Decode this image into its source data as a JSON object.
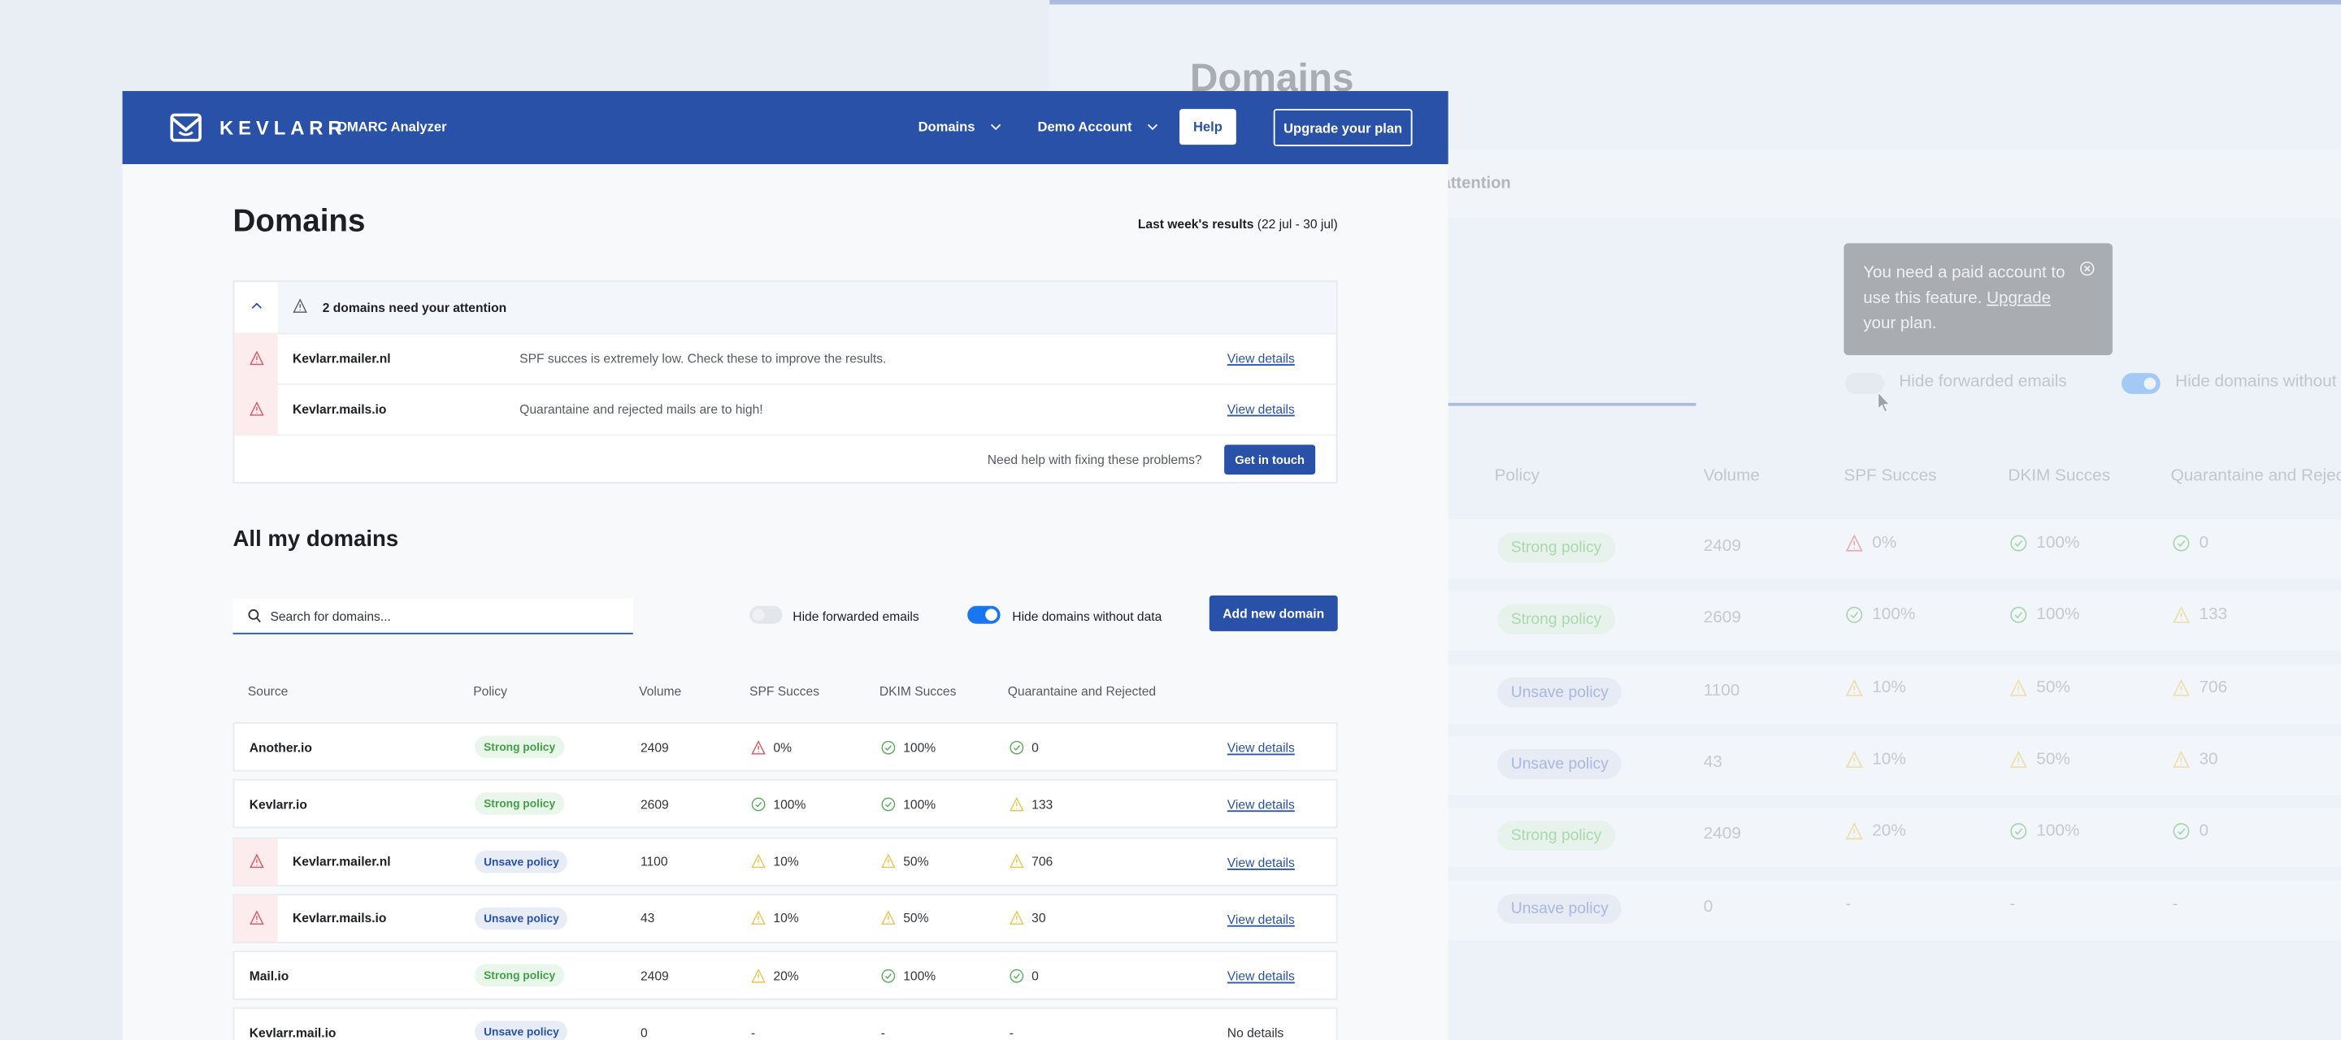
{
  "colors": {
    "brand": "#2851a7",
    "error": "#e0525e",
    "warning": "#e8c44a",
    "success": "#4caf50"
  },
  "header": {
    "logo_text": "KEVLARR",
    "product": "DMARC Analyzer",
    "nav": [
      {
        "label": "Domains",
        "icon": "chevron-down-icon"
      },
      {
        "label": "Demo Account",
        "icon": "chevron-down-icon"
      }
    ],
    "help_label": "Help",
    "upgrade_label": "Upgrade your plan"
  },
  "page": {
    "title": "Domains",
    "results_label": "Last week's results",
    "results_range": "(22 jul - 30 jul)"
  },
  "attention": {
    "title": "2 domains need your attention",
    "items": [
      {
        "domain": "Kevlarr.mailer.nl",
        "message": "SPF succes is extremely low. Check these to improve the results.",
        "link": "View details"
      },
      {
        "domain": "Kevlarr.mails.io",
        "message": "Quarantaine and rejected mails are to high!",
        "link": "View details"
      }
    ],
    "help_text": "Need help with fixing these problems?",
    "contact_label": "Get in touch"
  },
  "domains": {
    "title": "All my domains",
    "search_placeholder": "Search for domains...",
    "toggles": [
      {
        "label": "Hide forwarded emails",
        "on": false
      },
      {
        "label": "Hide domains without data",
        "on": true
      }
    ],
    "add_label": "Add new domain",
    "columns": [
      "Source",
      "Policy",
      "Volume",
      "SPF Succes",
      "DKIM Succes",
      "Quarantaine and Rejected"
    ],
    "rows": [
      {
        "source": "Another.io",
        "alert": false,
        "policy": "Strong policy",
        "policy_type": "strong",
        "volume": "2409",
        "spf": {
          "value": "0%",
          "status": "error"
        },
        "dkim": {
          "value": "100%",
          "status": "ok"
        },
        "qr": {
          "value": "0",
          "status": "ok"
        },
        "action": "View details",
        "action_link": true
      },
      {
        "source": "Kevlarr.io",
        "alert": false,
        "policy": "Strong policy",
        "policy_type": "strong",
        "volume": "2609",
        "spf": {
          "value": "100%",
          "status": "ok"
        },
        "dkim": {
          "value": "100%",
          "status": "ok"
        },
        "qr": {
          "value": "133",
          "status": "warning"
        },
        "action": "View details",
        "action_link": true
      },
      {
        "source": "Kevlarr.mailer.nl",
        "alert": true,
        "policy": "Unsave policy",
        "policy_type": "unsafe",
        "volume": "1100",
        "spf": {
          "value": "10%",
          "status": "warning"
        },
        "dkim": {
          "value": "50%",
          "status": "warning"
        },
        "qr": {
          "value": "706",
          "status": "warning"
        },
        "action": "View details",
        "action_link": true
      },
      {
        "source": "Kevlarr.mails.io",
        "alert": true,
        "policy": "Unsave policy",
        "policy_type": "unsafe",
        "volume": "43",
        "spf": {
          "value": "10%",
          "status": "warning"
        },
        "dkim": {
          "value": "50%",
          "status": "warning"
        },
        "qr": {
          "value": "30",
          "status": "warning"
        },
        "action": "View details",
        "action_link": true
      },
      {
        "source": "Mail.io",
        "alert": false,
        "policy": "Strong policy",
        "policy_type": "strong",
        "volume": "2409",
        "spf": {
          "value": "20%",
          "status": "warning"
        },
        "dkim": {
          "value": "100%",
          "status": "ok"
        },
        "qr": {
          "value": "0",
          "status": "ok"
        },
        "action": "View details",
        "action_link": true
      },
      {
        "source": "Kevlarr.mail.io",
        "alert": false,
        "policy": "Unsave policy",
        "policy_type": "unsafe",
        "volume": "0",
        "spf": {
          "value": "-",
          "status": "none"
        },
        "dkim": {
          "value": "-",
          "status": "none"
        },
        "qr": {
          "value": "-",
          "status": "none"
        },
        "action": "No details",
        "action_link": false
      }
    ]
  },
  "tooltip": {
    "text_before": "You need a paid account to use this feature. ",
    "link": "Upgrade",
    "text_after": " your plan."
  }
}
